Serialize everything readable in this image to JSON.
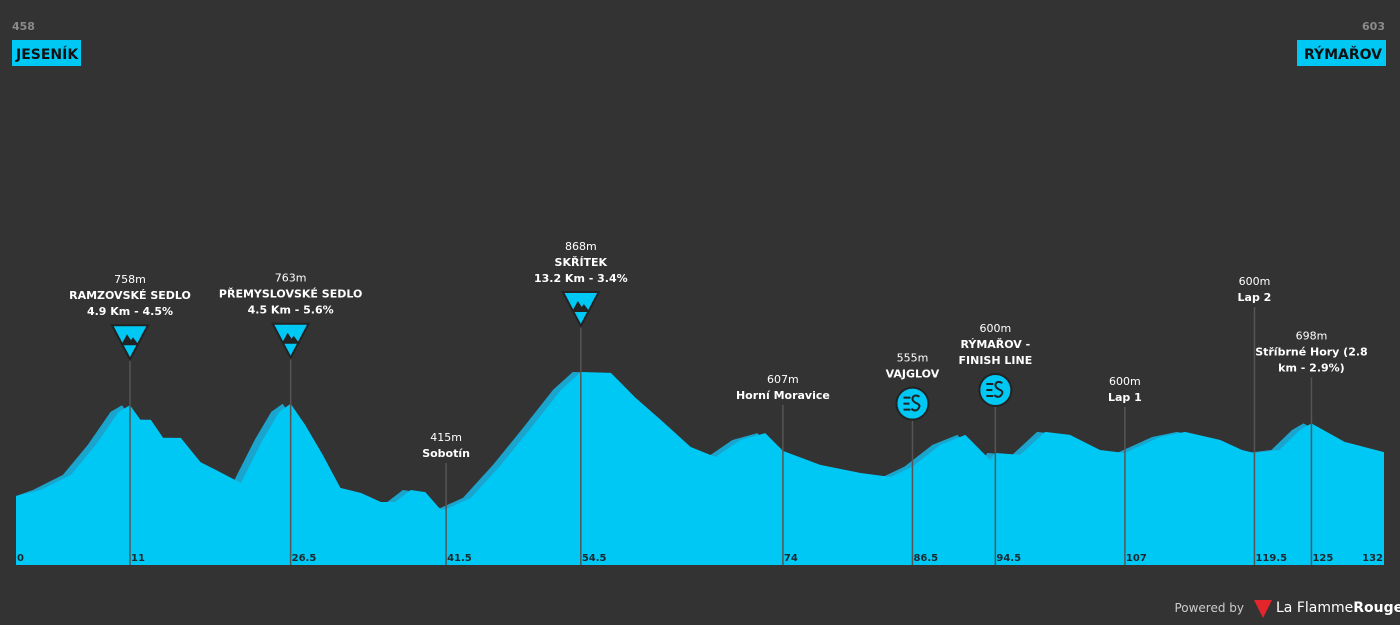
{
  "chart_data": {
    "type": "area",
    "start": {
      "elevation": 458,
      "name": "JESENÍK"
    },
    "finish": {
      "elevation": 603,
      "name": "RÝMAŘOV"
    },
    "x": [
      0,
      2.4,
      5.3,
      7.7,
      9.9,
      11,
      12,
      13,
      14.2,
      15.9,
      17.8,
      19.3,
      21.7,
      23.8,
      25.4,
      26.5,
      27.9,
      29.6,
      31.3,
      33.3,
      35.2,
      36.6,
      38.1,
      39.5,
      41,
      41.5,
      43.9,
      46.8,
      49.7,
      52.6,
      54.5,
      57.4,
      59.8,
      62.2,
      65.1,
      67.5,
      69.9,
      72.3,
      74,
      77.6,
      81.5,
      84.4,
      86.5,
      89.2,
      91.6,
      94,
      94.5,
      96.9,
      99.3,
      101.7,
      104.6,
      107,
      110.4,
      112.8,
      116.2,
      118.3,
      119.5,
      121.9,
      123.9,
      125,
      128.2,
      132
    ],
    "values": [
      458,
      478,
      528,
      627,
      736,
      758,
      710,
      710,
      650,
      650,
      570,
      544,
      501,
      643,
      736,
      763,
      693,
      594,
      485,
      468,
      438,
      438,
      478,
      471,
      412,
      415,
      452,
      561,
      683,
      809,
      868,
      865,
      782,
      710,
      620,
      587,
      643,
      666,
      607,
      561,
      534,
      521,
      555,
      627,
      660,
      577,
      600,
      594,
      670,
      660,
      610,
      600,
      653,
      670,
      643,
      610,
      600,
      610,
      676,
      698,
      637,
      603
    ],
    "color": "#00c8f5",
    "xlim": [
      0,
      132
    ],
    "ylim": [
      230,
      1000
    ],
    "xticks": [
      0,
      11,
      26.5,
      41.5,
      54.5,
      74,
      86.5,
      94.5,
      107,
      119.5,
      125,
      132
    ],
    "markers": [
      {
        "km": 11,
        "elevation": {
          "value": 758,
          "label": "758m"
        },
        "lines": [
          "RAMZOVSKÉ SEDLO",
          "4.9 Km - 4.5%"
        ],
        "icon": "kom"
      },
      {
        "km": 26.5,
        "elevation": {
          "value": 763,
          "label": "763m"
        },
        "lines": [
          "PŘEMYSLOVSKÉ SEDLO",
          "4.5 Km - 5.6%"
        ],
        "icon": "kom"
      },
      {
        "km": 41.5,
        "elevation": {
          "value": 415,
          "label": "415m"
        },
        "lines": [
          "Sobotín"
        ]
      },
      {
        "km": 54.5,
        "elevation": {
          "value": 868,
          "label": "868m"
        },
        "lines": [
          "SKŘÍTEK",
          "13.2 Km - 3.4%"
        ],
        "icon": "kom"
      },
      {
        "km": 74,
        "elevation": {
          "value": 607,
          "label": "607m"
        },
        "lines": [
          "Horní Moravice"
        ]
      },
      {
        "km": 86.5,
        "elevation": {
          "value": 555,
          "label": "555m"
        },
        "lines": [
          "VAJGLOV"
        ],
        "icon": "sprint"
      },
      {
        "km": 94.5,
        "elevation": {
          "value": 600,
          "label": "600m"
        },
        "lines": [
          "RÝMAŘOV -",
          "FINISH LINE"
        ],
        "icon": "sprint"
      },
      {
        "km": 107,
        "elevation": {
          "value": 600,
          "label": "600m"
        },
        "lines": [
          "Lap 1"
        ]
      },
      {
        "km": 119.5,
        "elevation": {
          "value": 600,
          "label": "600m"
        },
        "lines": [
          "Lap 2"
        ]
      },
      {
        "km": 125,
        "elevation": {
          "value": 698,
          "label": "698m"
        },
        "lines": [
          "Stříbrné Hory (2.8",
          "km - 2.9%)"
        ]
      }
    ],
    "footer": {
      "powered": "Powered by",
      "brand": "La Flamme",
      "brand_bold": "Rouge"
    }
  }
}
